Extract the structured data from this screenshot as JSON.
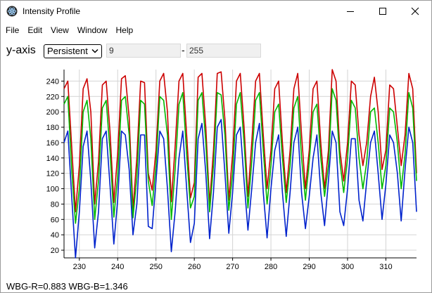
{
  "window": {
    "title": "Intensity Profile"
  },
  "menu": {
    "items": [
      "File",
      "Edit",
      "View",
      "Window",
      "Help"
    ]
  },
  "controls": {
    "label": "y-axis",
    "mode": "Persistent",
    "min": "9",
    "separator": "-",
    "max": "255"
  },
  "status": {
    "wbg_r": "WBG-R=0.883",
    "wbg_b": "WBG-B=1.346"
  },
  "colors": {
    "red": "#cc0000",
    "green": "#00b800",
    "blue": "#0022cc"
  },
  "chart_data": {
    "type": "line",
    "xlim": [
      226,
      318
    ],
    "ylim": [
      10,
      255
    ],
    "x_ticks": [
      230,
      240,
      250,
      260,
      270,
      280,
      290,
      300,
      310
    ],
    "y_ticks": [
      20,
      40,
      60,
      80,
      100,
      120,
      140,
      160,
      180,
      200,
      220,
      240
    ],
    "grid": true,
    "x_start": 226,
    "x_step": 1,
    "series": [
      {
        "color": "red",
        "values": [
          230,
          240,
          155,
          70,
          130,
          230,
          243,
          200,
          80,
          135,
          235,
          240,
          175,
          82,
          145,
          243,
          247,
          192,
          73,
          140,
          240,
          238,
          120,
          98,
          150,
          240,
          250,
          200,
          83,
          155,
          240,
          250,
          170,
          88,
          108,
          245,
          250,
          180,
          80,
          150,
          250,
          252,
          190,
          85,
          145,
          240,
          250,
          180,
          90,
          160,
          240,
          250,
          170,
          100,
          150,
          230,
          240,
          160,
          95,
          150,
          230,
          250,
          170,
          100,
          150,
          230,
          240,
          160,
          100,
          150,
          255,
          240,
          150,
          110,
          160,
          240,
          235,
          170,
          130,
          160,
          220,
          245,
          200,
          125,
          150,
          235,
          230,
          180,
          130,
          170,
          250,
          230,
          120
        ]
      },
      {
        "color": "green",
        "values": [
          210,
          220,
          125,
          55,
          100,
          200,
          215,
          165,
          60,
          110,
          205,
          215,
          150,
          63,
          115,
          215,
          220,
          170,
          62,
          115,
          215,
          210,
          110,
          78,
          130,
          220,
          215,
          170,
          60,
          125,
          210,
          225,
          145,
          75,
          90,
          215,
          225,
          160,
          70,
          130,
          225,
          222,
          170,
          72,
          120,
          210,
          225,
          160,
          75,
          135,
          215,
          225,
          150,
          80,
          130,
          200,
          210,
          140,
          82,
          130,
          205,
          220,
          140,
          85,
          135,
          200,
          210,
          140,
          90,
          130,
          230,
          215,
          135,
          95,
          140,
          215,
          205,
          140,
          100,
          135,
          200,
          205,
          160,
          100,
          130,
          205,
          200,
          160,
          100,
          145,
          225,
          205,
          110
        ]
      },
      {
        "color": "blue",
        "values": [
          160,
          175,
          90,
          10,
          70,
          155,
          175,
          110,
          23,
          70,
          165,
          175,
          105,
          28,
          85,
          175,
          170,
          125,
          40,
          80,
          170,
          170,
          51,
          48,
          110,
          175,
          165,
          100,
          18,
          70,
          140,
          175,
          100,
          30,
          55,
          165,
          185,
          120,
          35,
          95,
          180,
          190,
          120,
          42,
          95,
          170,
          180,
          110,
          46,
          100,
          160,
          185,
          95,
          36,
          100,
          150,
          170,
          95,
          38,
          95,
          160,
          180,
          95,
          48,
          90,
          140,
          170,
          95,
          52,
          110,
          175,
          160,
          70,
          52,
          100,
          165,
          165,
          85,
          58,
          110,
          160,
          175,
          120,
          60,
          105,
          170,
          160,
          120,
          58,
          125,
          180,
          160,
          70
        ]
      }
    ]
  }
}
